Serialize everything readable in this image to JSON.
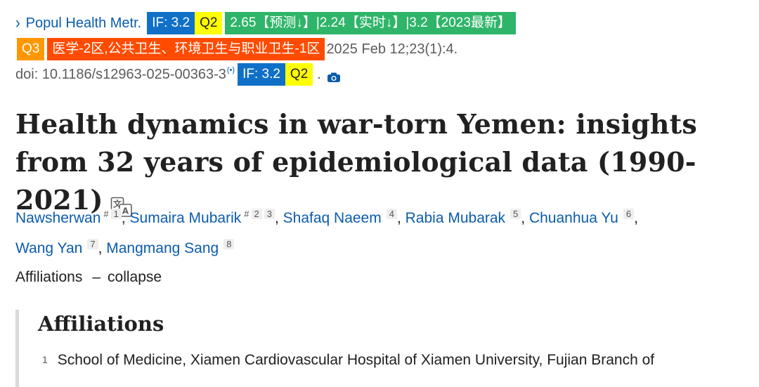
{
  "header": {
    "chevron_icon": "chevron-right-icon",
    "journal": "Popul Health Metr.",
    "if_label": "IF: 3.2",
    "quartile": "Q2",
    "if_trend": "2.65【预测↓】|2.24【实时↓】|3.2【2023最新】",
    "cas_quartile": "Q3",
    "cas_category": "医学-2区,公共卫生、环境卫生与职业卫生-1区",
    "citation": "2025 Feb 12;23(1):4.",
    "doi": "doi: 10.1186/s12963-025-00363-3",
    "radio_icon": "broadcast-icon",
    "doi_if_label": "IF: 3.2",
    "doi_quartile": "Q2",
    "dot": ".",
    "camera_icon": "camera-icon"
  },
  "article": {
    "title": "Health dynamics in war-torn Yemen: insights from 32 years of epidemiological data (1990-2021)",
    "translate_icon": "translate-icon"
  },
  "authors": [
    {
      "name": "Nawsherwan",
      "marks": [
        "#",
        "1"
      ]
    },
    {
      "name": "Sumaira Mubarik",
      "marks": [
        "#",
        "2",
        "3"
      ]
    },
    {
      "name": "Shafaq Naeem",
      "marks": [
        "4"
      ]
    },
    {
      "name": "Rabia Mubarak",
      "marks": [
        "5"
      ]
    },
    {
      "name": "Chuanhua Yu",
      "marks": [
        "6"
      ]
    },
    {
      "name": "Wang Yan",
      "marks": [
        "7"
      ]
    },
    {
      "name": "Mangmang Sang",
      "marks": [
        "8"
      ]
    }
  ],
  "affiliations": {
    "toggle_label": "Affiliations",
    "dash": "–",
    "collapse_label": "collapse",
    "heading": "Affiliations",
    "items": [
      {
        "num": "1",
        "text": "School of Medicine, Xiamen Cardiovascular Hospital of Xiamen University, Fujian Branch of"
      }
    ]
  },
  "colors": {
    "link": "#0b5cad",
    "if_badge": "#1070c8",
    "q2_badge": "#ffff00",
    "trend_badge": "#2fb569",
    "q3_badge": "#ff9800",
    "cas_badge": "#ff4b00"
  }
}
